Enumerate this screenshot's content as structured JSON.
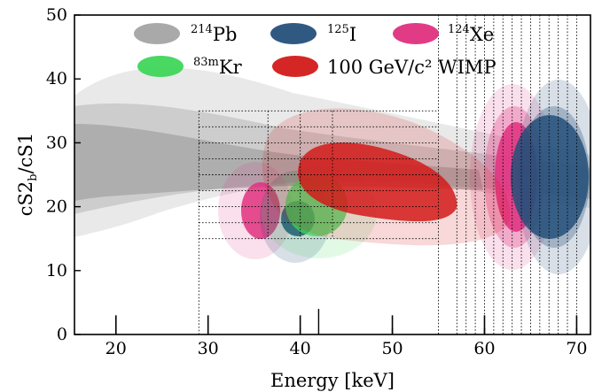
{
  "chart_data": {
    "type": "contour",
    "title": "",
    "xlabel": "Energy [keV]",
    "ylabel": "cS2b/cS1",
    "ylabel_main": "cS2",
    "ylabel_sub": "b",
    "ylabel_tail": "/cS1",
    "xlim": [
      15.5,
      71.5
    ],
    "ylim": [
      0,
      50
    ],
    "x_ticks": [
      20,
      30,
      40,
      50,
      60,
      70
    ],
    "y_ticks": [
      0,
      10,
      20,
      30,
      40,
      50
    ],
    "grid": false,
    "legend_position": "top",
    "colors": {
      "Pb214": "#9a9a9a",
      "Kr83m": "#3fd65a",
      "I125": "#25507a",
      "WIMP": "#d31a1a",
      "Xe124": "#e0307f"
    },
    "series": [
      {
        "key": "Pb214",
        "name_sup": "214",
        "name_main": "Pb",
        "center": [
          30,
          27
        ]
      },
      {
        "key": "Kr83m",
        "name_sup": "83m",
        "name_main": "Kr",
        "center": [
          41.5,
          21
        ]
      },
      {
        "key": "I125",
        "name_sup": "125",
        "name_main": "I",
        "center": [
          39.5,
          18.5
        ]
      },
      {
        "key": "WIMP",
        "name_sup": "",
        "name_main": "100 GeV/c² WIMP",
        "center": [
          47,
          23
        ]
      },
      {
        "key": "Xe124",
        "name_sup": "124",
        "name_main": "Xe",
        "center": [
          64,
          25
        ]
      }
    ],
    "dotted_box": {
      "x": [
        29,
        55
      ],
      "y": [
        15,
        35
      ]
    },
    "vertical_dotted_lines": [
      55,
      57,
      58,
      59,
      60,
      61,
      62,
      63,
      64,
      65,
      66,
      67,
      68,
      69,
      70
    ],
    "solid_markers_x": [
      20,
      30,
      40,
      50,
      60,
      70
    ]
  }
}
